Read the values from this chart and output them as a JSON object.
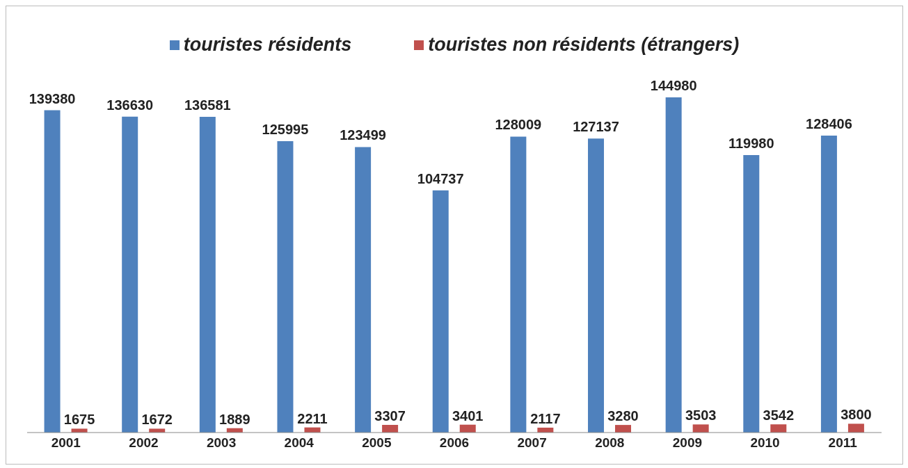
{
  "chart_data": {
    "type": "bar",
    "categories": [
      "2001",
      "2002",
      "2003",
      "2004",
      "2005",
      "2006",
      "2007",
      "2008",
      "2009",
      "2010",
      "2011"
    ],
    "series": [
      {
        "name": "touristes résidents",
        "color": "#4f81bd",
        "values": [
          139380,
          136630,
          136581,
          125995,
          123499,
          104737,
          128009,
          127137,
          144980,
          119980,
          128406
        ]
      },
      {
        "name": "touristes non résidents (étrangers)",
        "color": "#c0504d",
        "values": [
          1675,
          1672,
          1889,
          2211,
          3307,
          3401,
          2117,
          3280,
          3503,
          3542,
          3800
        ]
      }
    ],
    "data_labels": true,
    "legend": "top",
    "grid": false
  }
}
